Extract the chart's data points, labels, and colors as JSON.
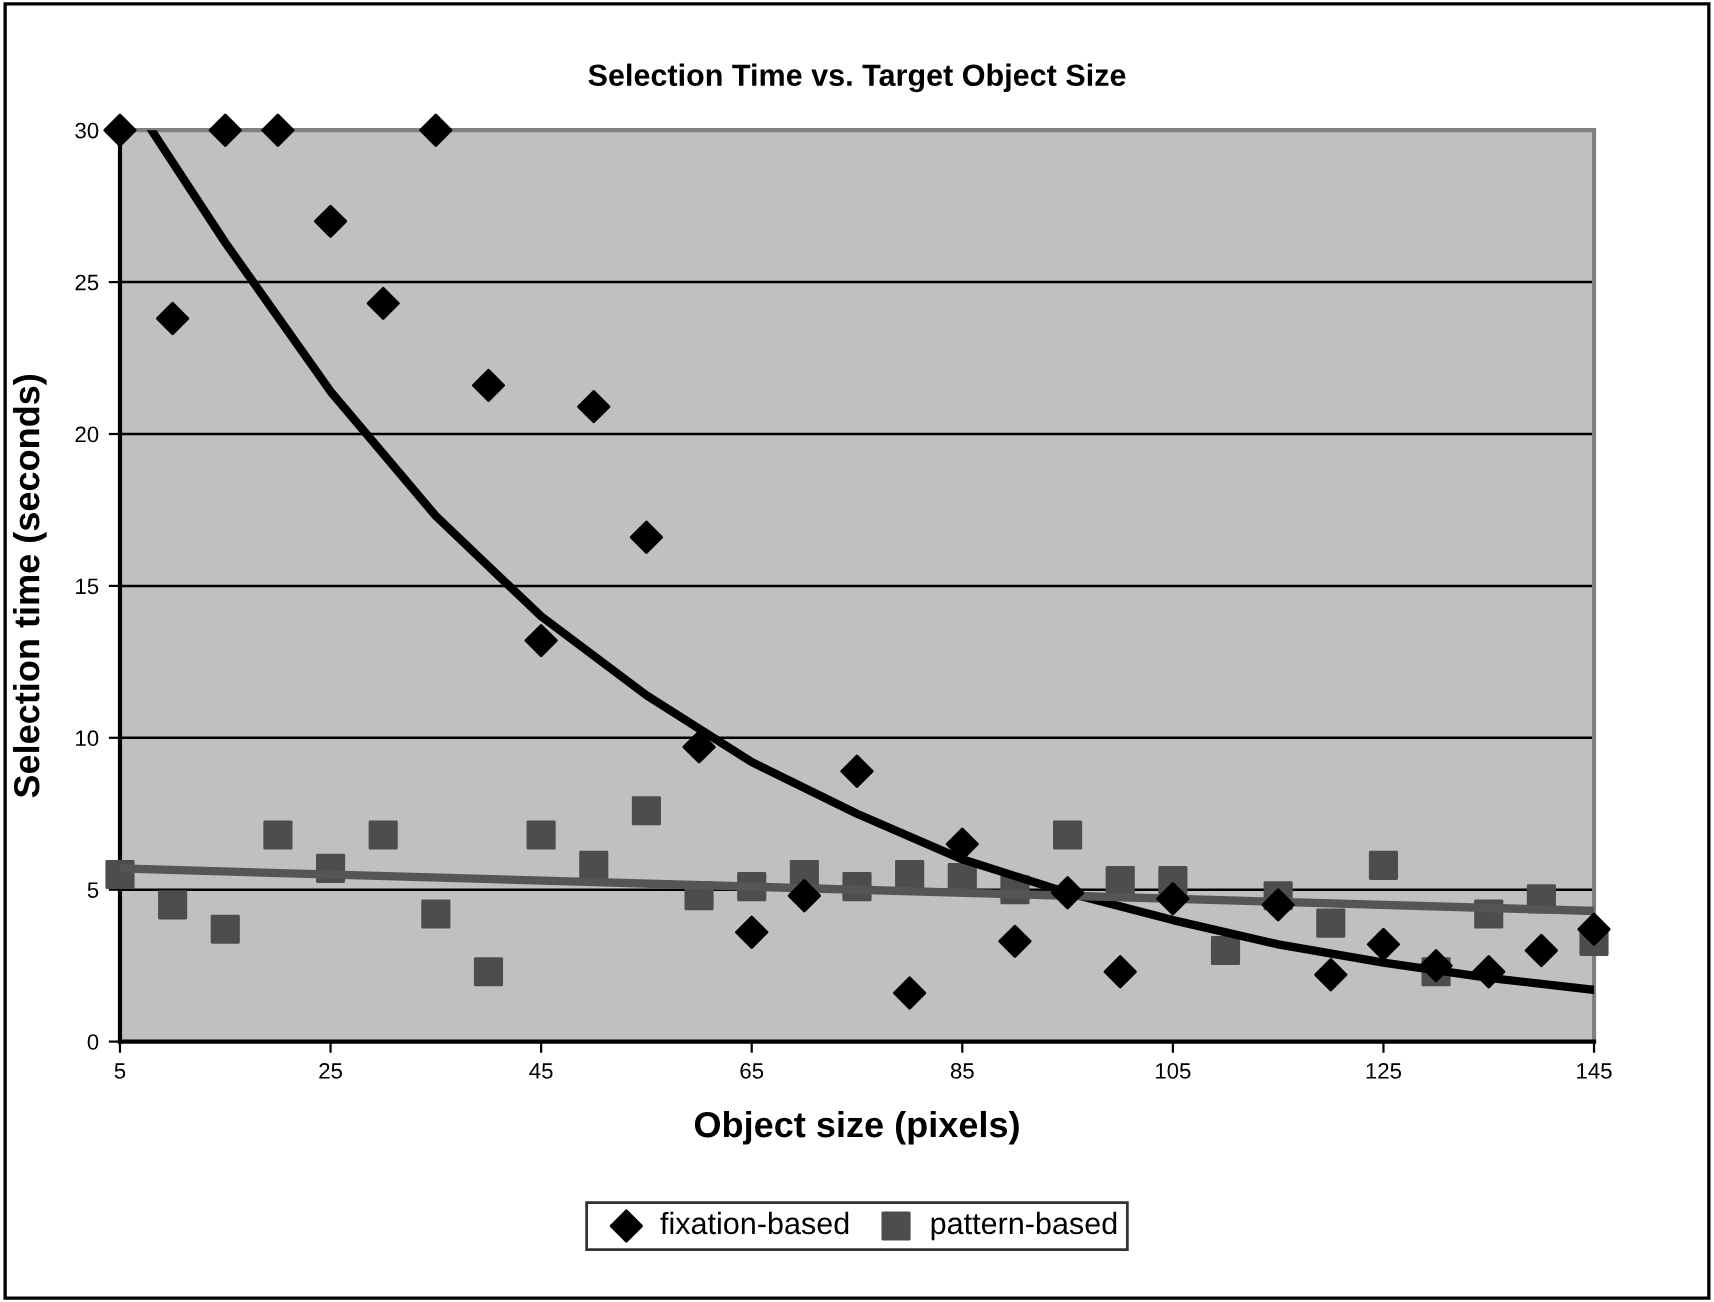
{
  "chart_data": {
    "type": "scatter",
    "title": "Selection Time vs. Target Object Size",
    "xlabel": "Object size (pixels)",
    "ylabel": "Selection time (seconds)",
    "x": [
      5,
      10,
      15,
      20,
      25,
      30,
      35,
      40,
      45,
      50,
      55,
      60,
      65,
      70,
      75,
      80,
      85,
      90,
      95,
      100,
      105,
      110,
      115,
      120,
      125,
      130,
      135,
      140,
      145
    ],
    "series": [
      {
        "name": "fixation-based",
        "color": "#000000",
        "marker": "diamond",
        "values": [
          30,
          23.8,
          30,
          30,
          27.0,
          24.3,
          30,
          21.6,
          13.2,
          20.9,
          16.6,
          9.7,
          3.6,
          4.8,
          8.9,
          1.6,
          6.5,
          3.3,
          4.9,
          2.3,
          4.7,
          null,
          4.5,
          2.2,
          3.2,
          2.5,
          2.3,
          3.0,
          3.7
        ]
      },
      {
        "name": "pattern-based",
        "color": "#4d4d4d",
        "marker": "square",
        "values": [
          5.5,
          4.5,
          3.7,
          6.8,
          5.7,
          6.8,
          4.2,
          2.3,
          6.8,
          5.8,
          7.6,
          4.8,
          5.1,
          5.5,
          5.1,
          5.5,
          5.4,
          5.0,
          6.8,
          5.3,
          5.3,
          3.0,
          4.8,
          3.9,
          5.8,
          2.3,
          4.2,
          4.7,
          3.3
        ]
      },
      {
        "type": "line",
        "color": "#000000",
        "x": [
          8,
          15,
          25,
          35,
          45,
          55,
          65,
          75,
          85,
          95,
          105,
          115,
          125,
          135,
          145
        ],
        "values": [
          30,
          26.3,
          21.4,
          17.3,
          14.0,
          11.4,
          9.2,
          7.5,
          6.0,
          4.9,
          4.0,
          3.2,
          2.6,
          2.1,
          1.7
        ]
      },
      {
        "type": "line",
        "color": "#555555",
        "x": [
          5,
          145
        ],
        "values": [
          5.7,
          4.3
        ]
      }
    ],
    "xlim": [
      5,
      145
    ],
    "xticks": [
      5,
      25,
      45,
      65,
      85,
      105,
      125,
      145
    ],
    "ylim": [
      0,
      30
    ],
    "yticks": [
      0,
      5,
      10,
      15,
      20,
      25,
      30
    ],
    "grid": "y",
    "legend": "bottom"
  }
}
